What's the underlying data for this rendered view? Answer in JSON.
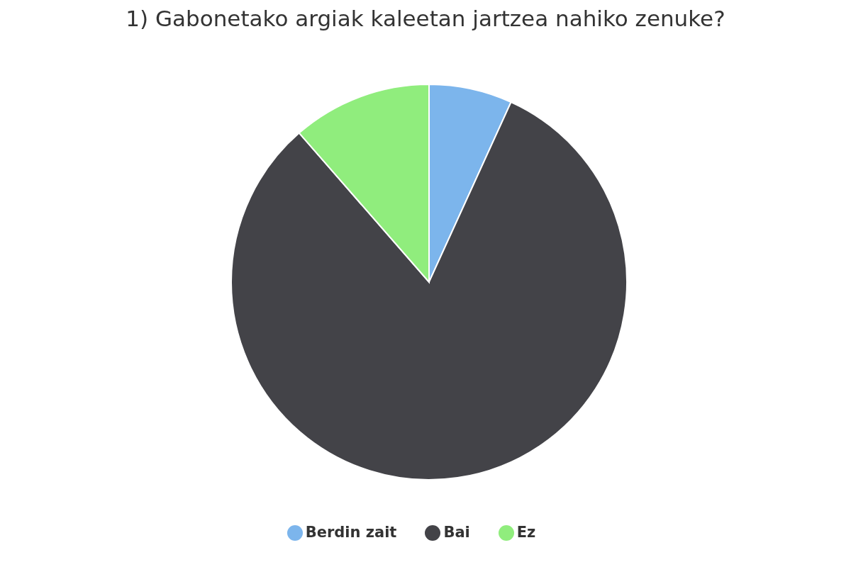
{
  "chart_data": {
    "type": "pie",
    "title": "1) Gabonetako argiak kaleetan jartzea nahiko zenuke?",
    "categories": [
      "Berdin zait",
      "Bai",
      "Ez"
    ],
    "values": [
      6.8,
      81.8,
      11.4
    ],
    "colors": [
      "#7cb5ec",
      "#434348",
      "#90ed7d"
    ],
    "legend": "bottom"
  }
}
